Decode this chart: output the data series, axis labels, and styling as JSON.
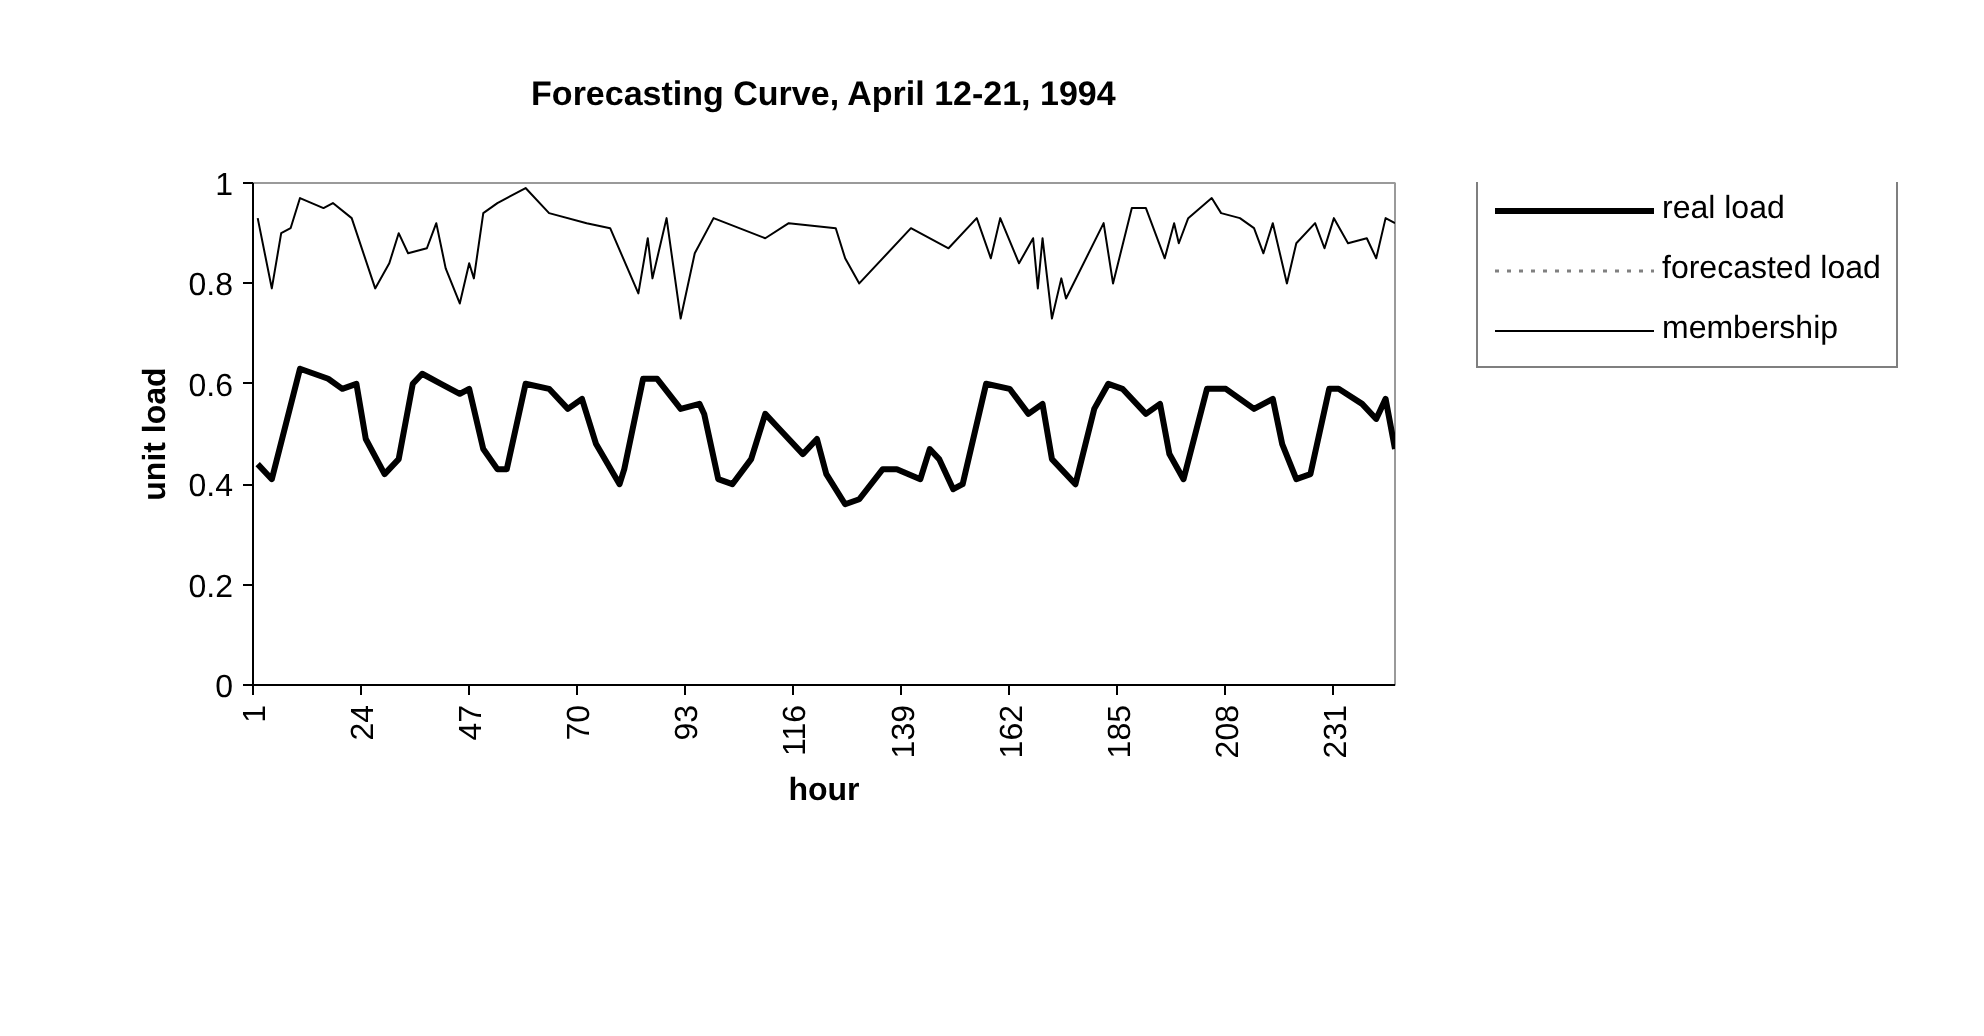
{
  "chart_data": {
    "type": "line",
    "title": "Forecasting Curve, April 12-21, 1994",
    "xlabel": "hour",
    "ylabel": "unit load",
    "xlim": [
      1,
      244
    ],
    "xticks": [
      1,
      24,
      47,
      70,
      93,
      116,
      139,
      162,
      185,
      208,
      231
    ],
    "ylim": [
      0,
      1
    ],
    "yticks": [
      0,
      0.2,
      0.4,
      0.6,
      0.8,
      1
    ],
    "grid": false,
    "legend": "right",
    "marker": "none",
    "series": [
      {
        "name": "real load",
        "color": "#000000",
        "line_style": "solid",
        "x": [
          2,
          5,
          11,
          17,
          20,
          23,
          25,
          29,
          32,
          35,
          37,
          41,
          45,
          47,
          50,
          53,
          55,
          59,
          64,
          68,
          71,
          74,
          79,
          80,
          84,
          87,
          92,
          96,
          97,
          100,
          103,
          107,
          110,
          113,
          118,
          121,
          123,
          127,
          130,
          135,
          138,
          143,
          145,
          147,
          150,
          152,
          157,
          162,
          166,
          169,
          171,
          176,
          180,
          183,
          186,
          191,
          194,
          196,
          199,
          204,
          208,
          214,
          218,
          220,
          223,
          226,
          230,
          232,
          237,
          240,
          242,
          244
        ],
        "values": [
          0.44,
          0.41,
          0.63,
          0.61,
          0.59,
          0.6,
          0.49,
          0.42,
          0.45,
          0.6,
          0.62,
          0.6,
          0.58,
          0.59,
          0.47,
          0.43,
          0.43,
          0.6,
          0.59,
          0.55,
          0.57,
          0.48,
          0.4,
          0.43,
          0.61,
          0.61,
          0.55,
          0.56,
          0.54,
          0.41,
          0.4,
          0.45,
          0.54,
          0.51,
          0.46,
          0.49,
          0.42,
          0.36,
          0.37,
          0.43,
          0.43,
          0.41,
          0.47,
          0.45,
          0.39,
          0.4,
          0.6,
          0.59,
          0.54,
          0.56,
          0.45,
          0.4,
          0.55,
          0.6,
          0.59,
          0.54,
          0.56,
          0.46,
          0.41,
          0.59,
          0.59,
          0.55,
          0.57,
          0.48,
          0.41,
          0.42,
          0.59,
          0.59,
          0.56,
          0.53,
          0.57,
          0.47
        ]
      },
      {
        "name": "forecasted load",
        "color": "#808080",
        "line_style": "dotted",
        "values": [
          null,
          null
        ]
      },
      {
        "name": "membership",
        "color": "#000000",
        "line_style": "solid",
        "x": [
          2,
          5,
          7,
          9,
          11,
          16,
          18,
          22,
          27,
          30,
          32,
          34,
          38,
          40,
          42,
          45,
          47,
          48,
          50,
          53,
          59,
          64,
          72,
          77,
          83,
          85,
          86,
          89,
          92,
          95,
          99,
          110,
          115,
          125,
          127,
          130,
          141,
          149,
          155,
          158,
          160,
          164,
          167,
          168,
          169,
          171,
          173,
          174,
          182,
          184,
          188,
          191,
          195,
          197,
          198,
          200,
          205,
          207,
          211,
          214,
          216,
          218,
          221,
          223,
          227,
          229,
          231,
          234,
          238,
          240,
          242,
          244
        ],
        "values": [
          0.93,
          0.79,
          0.9,
          0.91,
          0.97,
          0.95,
          0.96,
          0.93,
          0.79,
          0.84,
          0.9,
          0.86,
          0.87,
          0.92,
          0.83,
          0.76,
          0.84,
          0.81,
          0.94,
          0.96,
          0.99,
          0.94,
          0.92,
          0.91,
          0.78,
          0.89,
          0.81,
          0.93,
          0.73,
          0.86,
          0.93,
          0.89,
          0.92,
          0.91,
          0.85,
          0.8,
          0.91,
          0.87,
          0.93,
          0.85,
          0.93,
          0.84,
          0.89,
          0.79,
          0.89,
          0.73,
          0.81,
          0.77,
          0.92,
          0.8,
          0.95,
          0.95,
          0.85,
          0.92,
          0.88,
          0.93,
          0.97,
          0.94,
          0.93,
          0.91,
          0.86,
          0.92,
          0.8,
          0.88,
          0.92,
          0.87,
          0.93,
          0.88,
          0.89,
          0.85,
          0.93,
          0.92
        ]
      }
    ]
  }
}
